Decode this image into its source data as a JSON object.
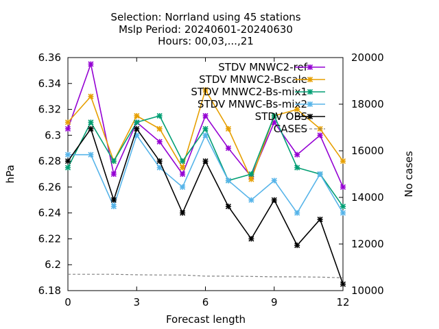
{
  "chart_data": {
    "type": "line",
    "title_lines": [
      "Selection: Norrland using    45 stations",
      "Mslp   Period: 20240601-20240630",
      "Hours: 00,03,...,21"
    ],
    "xlabel": "Forecast length",
    "ylabel": "hPa",
    "y2label": "No cases",
    "xlim": [
      0,
      12
    ],
    "ylim": [
      6.18,
      6.36
    ],
    "y2lim": [
      10000,
      20000
    ],
    "x_ticks": [
      0,
      3,
      6,
      9,
      12
    ],
    "x_tick_labels": [
      "0",
      "3",
      "6",
      "9",
      "12"
    ],
    "y_ticks": [
      6.18,
      6.2,
      6.22,
      6.24,
      6.26,
      6.28,
      6.3,
      6.32,
      6.34,
      6.36
    ],
    "y_tick_labels": [
      "6.18",
      "6.2",
      "6.22",
      "6.24",
      "6.26",
      "6.28",
      "6.3",
      "6.32",
      "6.34",
      "6.36"
    ],
    "y2_ticks": [
      10000,
      12000,
      14000,
      16000,
      18000,
      20000
    ],
    "y2_tick_labels": [
      "10000",
      "12000",
      "14000",
      "16000",
      "18000",
      "20000"
    ],
    "grid": false,
    "legend_position": "top-right",
    "x": [
      0,
      1,
      2,
      3,
      4,
      5,
      6,
      7,
      8,
      9,
      10,
      11,
      12
    ],
    "series": [
      {
        "name": "STDV MNWC2-ref",
        "color": "#9400d3",
        "axis": "y",
        "values": [
          6.305,
          6.355,
          6.27,
          6.31,
          6.295,
          6.27,
          6.315,
          6.29,
          6.268,
          6.31,
          6.285,
          6.3,
          6.26
        ]
      },
      {
        "name": "STDV MNWC2-Bscale",
        "color": "#e69f00",
        "axis": "y",
        "values": [
          6.31,
          6.33,
          6.28,
          6.315,
          6.305,
          6.275,
          6.335,
          6.305,
          6.266,
          6.315,
          6.32,
          6.305,
          6.28
        ]
      },
      {
        "name": "STDV MNWC2-Bs-mix1",
        "color": "#009e73",
        "axis": "y",
        "values": [
          6.275,
          6.31,
          6.28,
          6.31,
          6.315,
          6.28,
          6.305,
          6.265,
          6.27,
          6.315,
          6.275,
          6.27,
          6.245
        ]
      },
      {
        "name": "STDV MNWC-Bs-mix2",
        "color": "#56b4e9",
        "axis": "y",
        "values": [
          6.285,
          6.285,
          6.245,
          6.3,
          6.275,
          6.26,
          6.3,
          6.265,
          6.25,
          6.265,
          6.24,
          6.27,
          6.24
        ]
      },
      {
        "name": "STDV OBS",
        "color": "#000000",
        "axis": "y",
        "values": [
          6.28,
          6.305,
          6.25,
          6.305,
          6.28,
          6.24,
          6.28,
          6.245,
          6.22,
          6.25,
          6.215,
          6.235,
          6.185
        ]
      },
      {
        "name": "CASES",
        "color": "#808080",
        "axis": "y2",
        "dashed": true,
        "values": [
          10700,
          10700,
          10700,
          10680,
          10670,
          10670,
          10620,
          10620,
          10610,
          10590,
          10590,
          10580,
          10550
        ]
      }
    ]
  }
}
